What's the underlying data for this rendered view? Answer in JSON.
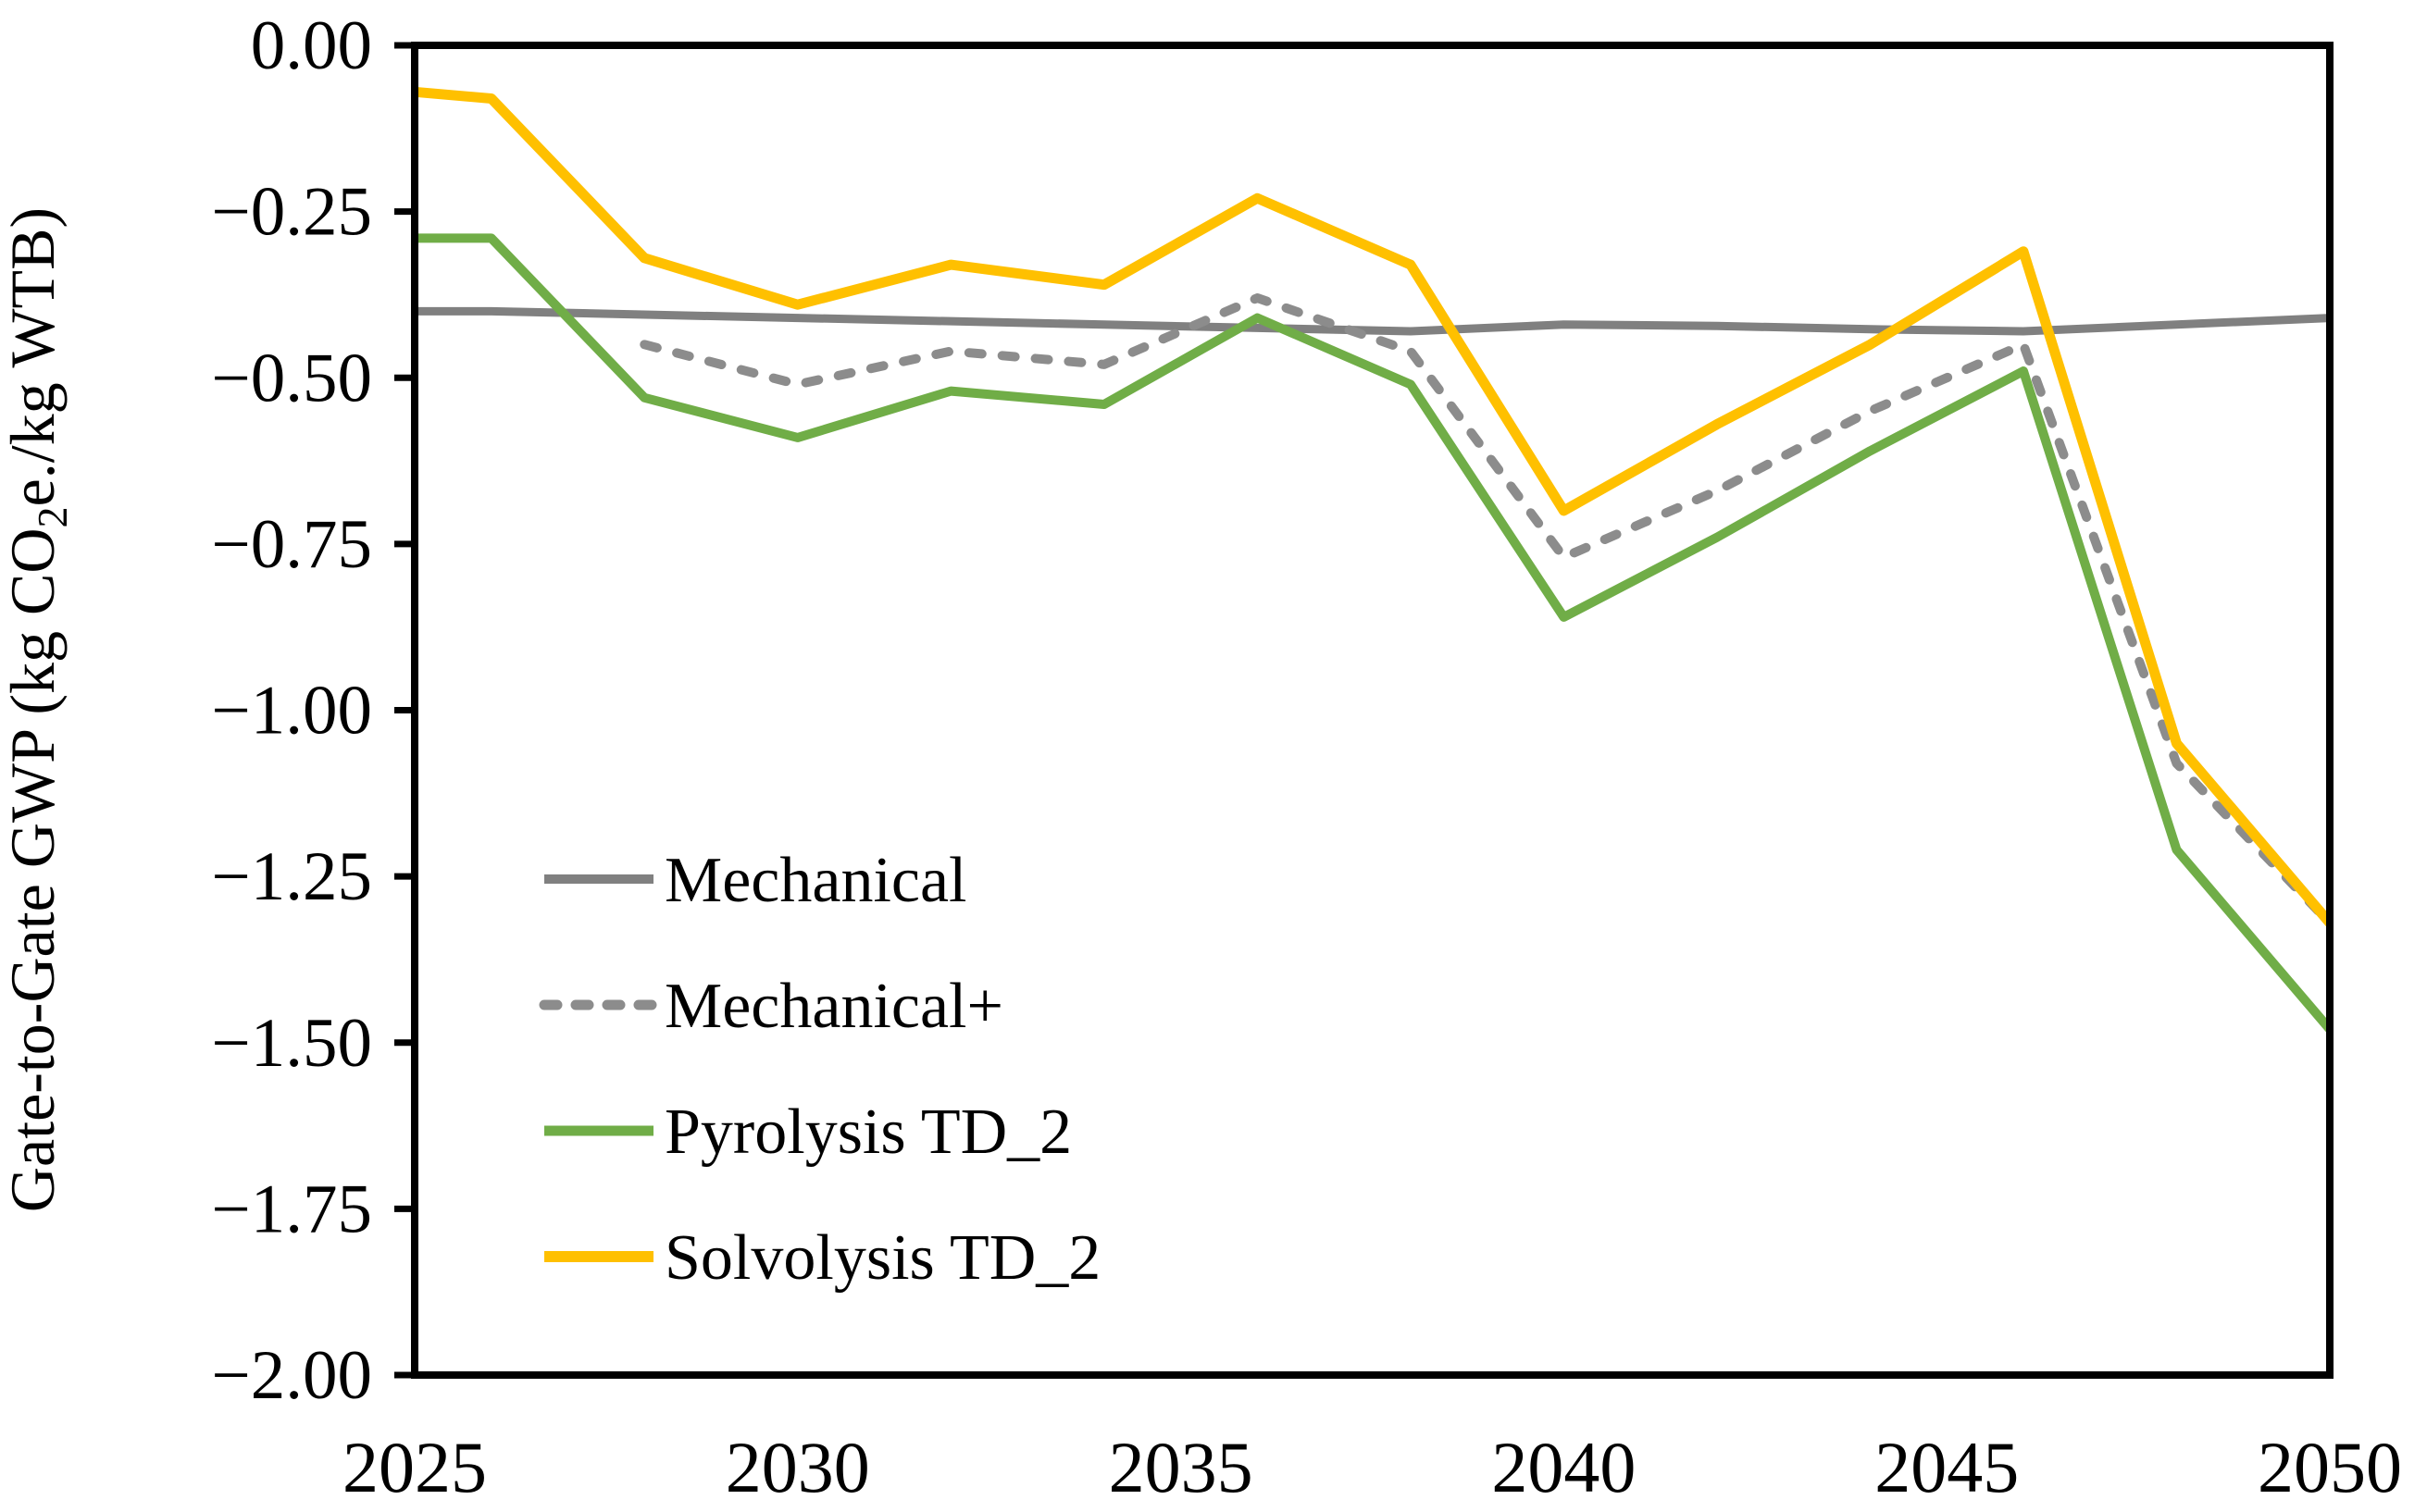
{
  "figure": {
    "background": "#FFFFFF",
    "ylabel_pre": "Gate-to-Gate GWP (kg CO",
    "ylabel_sub": "2",
    "ylabel_post": "e./kg WTB)"
  },
  "chart_data": {
    "type": "line",
    "title": "",
    "xlabel": "",
    "ylabel": "Gate-to-Gate GWP (kg CO2e./kg WTB)",
    "xlim": [
      2025,
      2050
    ],
    "ylim": [
      -2.0,
      0.0
    ],
    "grid": false,
    "legend_position": "inside lower-left",
    "x": [
      2025,
      2026,
      2028,
      2030,
      2032,
      2034,
      2036,
      2038,
      2040,
      2042,
      2044,
      2046,
      2048,
      2050
    ],
    "x_tick_values": [
      2025,
      2030,
      2035,
      2040,
      2045,
      2050
    ],
    "x_tick_labels": [
      "2025",
      "2030",
      "2035",
      "2040",
      "2045",
      "2050"
    ],
    "y_tick_values": [
      0,
      -0.25,
      -0.5,
      -0.75,
      -1.0,
      -1.25,
      -1.5,
      -1.75,
      -2.0
    ],
    "y_tick_labels": [
      "0.00",
      "−0.25",
      "−0.50",
      "−0.75",
      "−1.00",
      "−1.25",
      "−1.50",
      "−1.75",
      "−2.00"
    ],
    "series": [
      {
        "name": "Mechanical",
        "color": "#808080",
        "style": "solid",
        "width": 9,
        "values": [
          -0.4,
          -0.4,
          -0.405,
          -0.41,
          -0.415,
          -0.42,
          -0.425,
          -0.43,
          -0.42,
          -0.422,
          -0.427,
          -0.43,
          -0.42,
          -0.41
        ]
      },
      {
        "name": "Mechanical+",
        "color": "#8C8C8C",
        "style": "dashed",
        "width": 10,
        "values": [
          null,
          null,
          -0.45,
          -0.51,
          -0.46,
          -0.48,
          -0.38,
          -0.46,
          -0.77,
          -0.67,
          -0.55,
          -0.45,
          -1.08,
          -1.32
        ]
      },
      {
        "name": "Pyrolysis TD_2",
        "color": "#70AD47",
        "style": "solid",
        "width": 10,
        "values": [
          -0.29,
          -0.29,
          -0.53,
          -0.59,
          -0.52,
          -0.54,
          -0.41,
          -0.51,
          -0.86,
          -0.74,
          -0.61,
          -0.49,
          -1.21,
          -1.48
        ]
      },
      {
        "name": "Solvolysis TD_2",
        "color": "#FFC000",
        "style": "solid",
        "width": 11,
        "values": [
          -0.07,
          -0.08,
          -0.32,
          -0.39,
          -0.33,
          -0.36,
          -0.23,
          -0.33,
          -0.7,
          -0.57,
          -0.45,
          -0.31,
          -1.05,
          -1.32
        ]
      }
    ]
  },
  "legend": {
    "items": [
      "Mechanical",
      "Mechanical+",
      "Pyrolysis TD_2",
      "Solvolysis TD_2"
    ]
  }
}
